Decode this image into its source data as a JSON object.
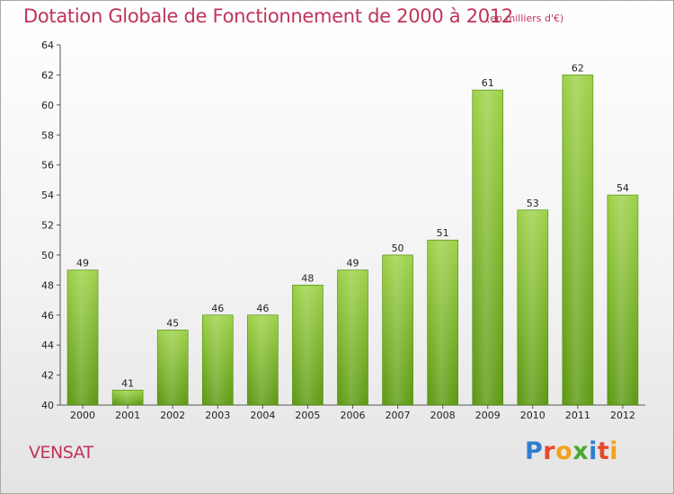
{
  "header": {
    "title": "Dotation Globale de Fonctionnement de 2000 à 2012",
    "subtitle": "(en milliers d'€)"
  },
  "footer": {
    "city": "VENSAT",
    "logo": {
      "text": "Proxiti",
      "letters": [
        "P",
        "r",
        "o",
        "x",
        "i",
        "t",
        "i"
      ],
      "colors": [
        "#2f7fd0",
        "#e8492b",
        "#f2a31b",
        "#4aa832",
        "#2f7fd0",
        "#e8492b",
        "#f2a31b"
      ]
    }
  },
  "colors": {
    "title": "#c0335a",
    "bar_top": "#9ed24a",
    "bar_bottom": "#5e9a14",
    "bar_border": "#4f8510"
  },
  "chart_data": {
    "type": "bar",
    "categories": [
      "2000",
      "2001",
      "2002",
      "2003",
      "2004",
      "2005",
      "2006",
      "2007",
      "2008",
      "2009",
      "2010",
      "2011",
      "2012"
    ],
    "values": [
      49,
      41,
      45,
      46,
      46,
      48,
      49,
      50,
      51,
      61,
      53,
      62,
      54
    ],
    "ylim": [
      40,
      64
    ],
    "yticks": [
      40,
      42,
      44,
      46,
      48,
      50,
      52,
      54,
      56,
      58,
      60,
      62,
      64
    ],
    "title": "Dotation Globale de Fonctionnement de 2000 à 2012",
    "subtitle": "(en milliers d'€)",
    "xlabel": "",
    "ylabel": "",
    "grid": false,
    "legend": "none"
  }
}
